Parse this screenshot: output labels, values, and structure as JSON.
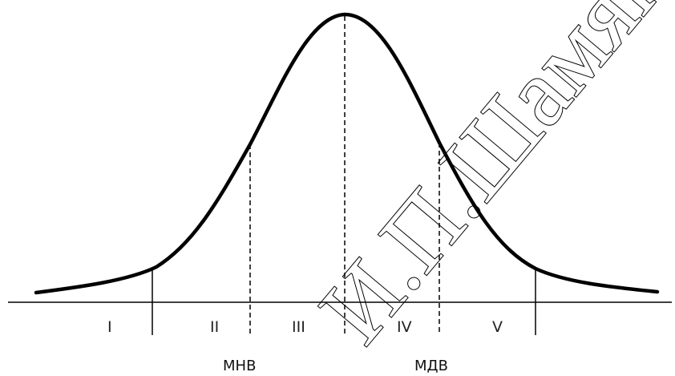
{
  "diagram": {
    "regions": [
      {
        "id": "I",
        "label": "I"
      },
      {
        "id": "II",
        "label": "II"
      },
      {
        "id": "III",
        "label": "III"
      },
      {
        "id": "IV",
        "label": "IV"
      },
      {
        "id": "V",
        "label": "V"
      }
    ],
    "bounds": {
      "lower": "МНВ",
      "upper": "МДВ"
    },
    "watermark": "И.П.Шамяк",
    "colors": {
      "line": "#000000",
      "text": "#222222",
      "background": "#ffffff"
    }
  }
}
